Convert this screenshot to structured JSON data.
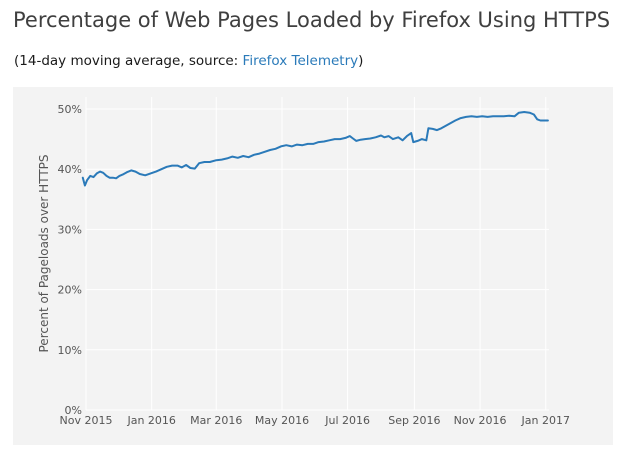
{
  "header": {
    "title": "Percentage of Web Pages Loaded by Firefox Using HTTPS",
    "subtitle_prefix": "(14-day moving average, source: ",
    "subtitle_link": "Firefox Telemetry",
    "subtitle_suffix": ")"
  },
  "colors": {
    "line": "#2b7ab9",
    "grid": "#ffffff",
    "plot_background": "#f3f3f3",
    "link": "#2a7ab9"
  },
  "chart_data": {
    "type": "line",
    "ylabel": "Percent of Pageloads over HTTPS",
    "xlabel": "",
    "ylim": [
      0,
      52
    ],
    "xlim": [
      "2015-11-01",
      "2017-01-04"
    ],
    "grid": true,
    "y_ticks": [
      {
        "value": 0,
        "label": "0%"
      },
      {
        "value": 10,
        "label": "10%"
      },
      {
        "value": 20,
        "label": "20%"
      },
      {
        "value": 30,
        "label": "30%"
      },
      {
        "value": 40,
        "label": "40%"
      },
      {
        "value": 50,
        "label": "50%"
      }
    ],
    "x_ticks": [
      {
        "date": "2015-11-01",
        "label": "Nov 2015"
      },
      {
        "date": "2016-01-01",
        "label": "Jan 2016"
      },
      {
        "date": "2016-03-01",
        "label": "Mar 2016"
      },
      {
        "date": "2016-05-01",
        "label": "May 2016"
      },
      {
        "date": "2016-07-01",
        "label": "Jul 2016"
      },
      {
        "date": "2016-09-01",
        "label": "Sep 2016"
      },
      {
        "date": "2016-11-01",
        "label": "Nov 2016"
      },
      {
        "date": "2017-01-01",
        "label": "Jan 2017"
      }
    ],
    "series": [
      {
        "points": [
          [
            "2015-10-29",
            38.6
          ],
          [
            "2015-10-31",
            37.3
          ],
          [
            "2015-11-02",
            38.2
          ],
          [
            "2015-11-05",
            38.9
          ],
          [
            "2015-11-08",
            38.7
          ],
          [
            "2015-11-11",
            39.3
          ],
          [
            "2015-11-14",
            39.6
          ],
          [
            "2015-11-17",
            39.4
          ],
          [
            "2015-11-20",
            38.9
          ],
          [
            "2015-11-23",
            38.6
          ],
          [
            "2015-11-26",
            38.6
          ],
          [
            "2015-11-29",
            38.5
          ],
          [
            "2015-12-02",
            38.9
          ],
          [
            "2015-12-05",
            39.1
          ],
          [
            "2015-12-09",
            39.5
          ],
          [
            "2015-12-13",
            39.8
          ],
          [
            "2015-12-17",
            39.6
          ],
          [
            "2015-12-21",
            39.2
          ],
          [
            "2015-12-26",
            39.0
          ],
          [
            "2015-12-31",
            39.3
          ],
          [
            "2016-01-05",
            39.6
          ],
          [
            "2016-01-10",
            40.0
          ],
          [
            "2016-01-15",
            40.4
          ],
          [
            "2016-01-20",
            40.6
          ],
          [
            "2016-01-25",
            40.6
          ],
          [
            "2016-01-29",
            40.3
          ],
          [
            "2016-02-02",
            40.7
          ],
          [
            "2016-02-06",
            40.2
          ],
          [
            "2016-02-10",
            40.1
          ],
          [
            "2016-02-14",
            41.0
          ],
          [
            "2016-02-19",
            41.2
          ],
          [
            "2016-02-24",
            41.2
          ],
          [
            "2016-03-01",
            41.5
          ],
          [
            "2016-03-06",
            41.6
          ],
          [
            "2016-03-11",
            41.8
          ],
          [
            "2016-03-16",
            42.1
          ],
          [
            "2016-03-21",
            41.9
          ],
          [
            "2016-03-26",
            42.2
          ],
          [
            "2016-03-31",
            42.0
          ],
          [
            "2016-04-05",
            42.4
          ],
          [
            "2016-04-10",
            42.6
          ],
          [
            "2016-04-15",
            42.9
          ],
          [
            "2016-04-20",
            43.2
          ],
          [
            "2016-04-25",
            43.4
          ],
          [
            "2016-04-30",
            43.8
          ],
          [
            "2016-05-05",
            44.0
          ],
          [
            "2016-05-10",
            43.8
          ],
          [
            "2016-05-15",
            44.1
          ],
          [
            "2016-05-20",
            44.0
          ],
          [
            "2016-05-25",
            44.2
          ],
          [
            "2016-05-30",
            44.2
          ],
          [
            "2016-06-04",
            44.5
          ],
          [
            "2016-06-09",
            44.6
          ],
          [
            "2016-06-14",
            44.8
          ],
          [
            "2016-06-19",
            45.0
          ],
          [
            "2016-06-24",
            45.0
          ],
          [
            "2016-06-29",
            45.2
          ],
          [
            "2016-07-03",
            45.5
          ],
          [
            "2016-07-06",
            45.1
          ],
          [
            "2016-07-09",
            44.7
          ],
          [
            "2016-07-13",
            44.9
          ],
          [
            "2016-07-17",
            45.0
          ],
          [
            "2016-07-22",
            45.1
          ],
          [
            "2016-07-27",
            45.3
          ],
          [
            "2016-08-01",
            45.6
          ],
          [
            "2016-08-04",
            45.3
          ],
          [
            "2016-08-08",
            45.5
          ],
          [
            "2016-08-12",
            45.0
          ],
          [
            "2016-08-17",
            45.3
          ],
          [
            "2016-08-21",
            44.8
          ],
          [
            "2016-08-25",
            45.5
          ],
          [
            "2016-08-29",
            46.0
          ],
          [
            "2016-08-31",
            44.5
          ],
          [
            "2016-09-04",
            44.7
          ],
          [
            "2016-09-08",
            45.0
          ],
          [
            "2016-09-12",
            44.8
          ],
          [
            "2016-09-14",
            46.8
          ],
          [
            "2016-09-18",
            46.7
          ],
          [
            "2016-09-22",
            46.5
          ],
          [
            "2016-09-26",
            46.8
          ],
          [
            "2016-09-30",
            47.2
          ],
          [
            "2016-10-04",
            47.6
          ],
          [
            "2016-10-09",
            48.1
          ],
          [
            "2016-10-14",
            48.5
          ],
          [
            "2016-10-19",
            48.7
          ],
          [
            "2016-10-24",
            48.8
          ],
          [
            "2016-10-29",
            48.7
          ],
          [
            "2016-11-03",
            48.8
          ],
          [
            "2016-11-08",
            48.7
          ],
          [
            "2016-11-13",
            48.8
          ],
          [
            "2016-11-18",
            48.8
          ],
          [
            "2016-11-23",
            48.8
          ],
          [
            "2016-11-28",
            48.9
          ],
          [
            "2016-12-03",
            48.8
          ],
          [
            "2016-12-07",
            49.4
          ],
          [
            "2016-12-12",
            49.5
          ],
          [
            "2016-12-17",
            49.4
          ],
          [
            "2016-12-21",
            49.1
          ],
          [
            "2016-12-24",
            48.3
          ],
          [
            "2016-12-27",
            48.1
          ],
          [
            "2017-01-01",
            48.1
          ],
          [
            "2017-01-03",
            48.1
          ]
        ]
      }
    ]
  }
}
